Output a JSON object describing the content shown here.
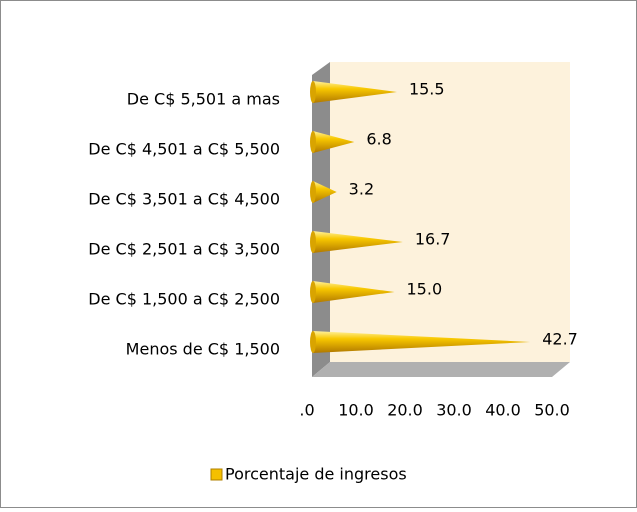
{
  "chart_data": {
    "type": "cone-bar",
    "categories": [
      "De C$ 5,501 a mas",
      "De C$ 4,501 a C$ 5,500",
      "De C$ 3,501 a C$ 4,500",
      "De C$ 2,501 a C$ 3,500",
      "De C$ 1,500 a C$ 2,500",
      "Menos de C$ 1,500"
    ],
    "series": [
      {
        "name": "Porcentaje de ingresos",
        "color": "#f5c000",
        "values": [
          15.5,
          6.8,
          3.2,
          16.7,
          15.0,
          42.7
        ],
        "value_labels": [
          "15.5",
          "6.8",
          "3.2",
          "16.7",
          "15.0",
          "42.7"
        ]
      }
    ],
    "xlim": [
      0,
      50
    ],
    "xticks": [
      {
        "value": 0,
        "label": ".0"
      },
      {
        "value": 10,
        "label": "10.0"
      },
      {
        "value": 20,
        "label": "20.0"
      },
      {
        "value": 30,
        "label": "30.0"
      },
      {
        "value": 40,
        "label": "40.0"
      },
      {
        "value": 50,
        "label": "50.0"
      }
    ],
    "legend": "bottom"
  }
}
